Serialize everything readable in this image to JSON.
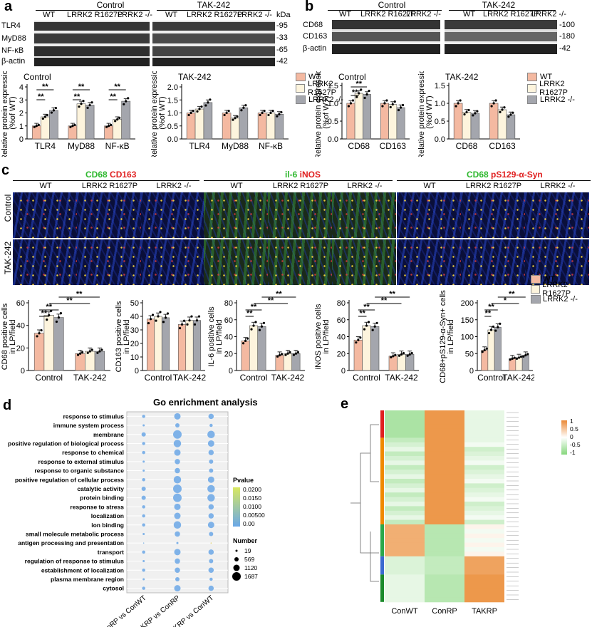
{
  "panel_a": {
    "label": "a",
    "group_control": "Control",
    "group_tak": "TAK-242",
    "lane_labels": [
      "WT",
      "LRRK2 R1627P",
      "LRRK2 -/-"
    ],
    "kda": "kDa",
    "rows": [
      {
        "protein": "TLR4",
        "kda": "-95"
      },
      {
        "protein": "MyD88",
        "kda": "-33"
      },
      {
        "protein": "NF-κB",
        "kda": "-65"
      },
      {
        "protein": "β-actin",
        "kda": "-42"
      }
    ]
  },
  "panel_b": {
    "label": "b",
    "group_control": "Control",
    "group_tak": "TAK-242",
    "lane_labels": [
      "WT",
      "LRRK2 R1627P",
      "LRRK2 -/-"
    ],
    "rows": [
      {
        "protein": "CD68",
        "kda": "-100"
      },
      {
        "protein": "CD163",
        "kda": "-180"
      },
      {
        "protein": "β-actin",
        "kda": "-42"
      }
    ]
  },
  "panel_c": {
    "label": "c",
    "stain_groups": [
      {
        "parts": [
          "CD68",
          " CD163"
        ],
        "colors": [
          "#2eb82e",
          "#e02020"
        ]
      },
      {
        "parts": [
          "il-6",
          " iNOS"
        ],
        "colors": [
          "#2eb82e",
          "#e02020"
        ]
      },
      {
        "parts": [
          "CD68",
          " pS129-α-Syn"
        ],
        "colors": [
          "#2eb82e",
          "#e02020"
        ]
      }
    ],
    "col_labels": [
      "WT",
      "LRRK2 R1627P",
      "LRRK2 -/-"
    ],
    "row_labels": [
      "Control",
      "TAK-242"
    ]
  },
  "legend": {
    "items": [
      {
        "name": "WT",
        "color": "#f4b9a1"
      },
      {
        "name": "LRRK2 R1627P",
        "color": "#fdf4dd"
      },
      {
        "name": "LRRK2 -/-",
        "color": "#a4a6ad"
      }
    ]
  },
  "panel_d": {
    "label": "d",
    "title": "Go enrichment analysis",
    "pvalue_title": "Pvalue",
    "pvalue_ticks": [
      "0.0200",
      "0.0150",
      "0.0100",
      "0.00500",
      "0.00"
    ],
    "number_title": "Number",
    "number_ticks": [
      "19",
      "569",
      "1120",
      "1687"
    ]
  },
  "panel_e": {
    "label": "e",
    "columns": [
      "ConWT",
      "ConRP",
      "TAKRP"
    ],
    "scale_ticks": [
      "1",
      "0.5",
      "0",
      "-0.5",
      "-1"
    ]
  },
  "chart_data": [
    {
      "type": "bar",
      "panel": "a-control",
      "title": "Control",
      "ylabel": "Relative protein expression (%of WT)",
      "categories": [
        "TLR4",
        "MyD88",
        "NF-κB"
      ],
      "ylim": [
        0,
        4
      ],
      "yticks": [
        "0",
        "1",
        "2",
        "3",
        "4"
      ],
      "series": [
        {
          "name": "WT",
          "values": [
            1.0,
            1.0,
            1.0
          ]
        },
        {
          "name": "LRRK2 R1627P",
          "values": [
            1.7,
            2.7,
            1.5
          ]
        },
        {
          "name": "LRRK2 -/-",
          "values": [
            2.2,
            2.6,
            2.9
          ]
        }
      ],
      "significance": [
        "**",
        "**",
        "**",
        "**",
        "**",
        "**"
      ]
    },
    {
      "type": "bar",
      "panel": "a-tak",
      "title": "TAK-242",
      "ylabel": "Relative protein expression (%of WT)",
      "categories": [
        "TLR4",
        "MyD88",
        "NF-κB"
      ],
      "ylim": [
        0,
        2.0
      ],
      "yticks": [
        "0.0",
        "0.5",
        "1.0",
        "1.5",
        "2.0"
      ],
      "series": [
        {
          "name": "WT",
          "values": [
            1.0,
            1.0,
            1.0
          ]
        },
        {
          "name": "LRRK2 R1627P",
          "values": [
            1.15,
            0.8,
            1.0
          ]
        },
        {
          "name": "LRRK2 -/-",
          "values": [
            1.4,
            1.2,
            0.95
          ]
        }
      ]
    },
    {
      "type": "bar",
      "panel": "b-control",
      "title": "Control",
      "ylabel": "Relative protein expression (%of WT)",
      "categories": [
        "CD68",
        "CD163"
      ],
      "ylim": [
        0,
        1.5
      ],
      "yticks": [
        "0.0",
        "0.5",
        "1.0",
        "1.5"
      ],
      "series": [
        {
          "name": "WT",
          "values": [
            1.0,
            1.0
          ]
        },
        {
          "name": "LRRK2 R1627P",
          "values": [
            1.28,
            0.97
          ]
        },
        {
          "name": "LRRK2 -/-",
          "values": [
            1.25,
            0.88
          ]
        }
      ],
      "significance": [
        "**",
        "**"
      ]
    },
    {
      "type": "bar",
      "panel": "b-tak",
      "title": "TAK-242",
      "ylabel": "Relative protein expression (%of WT)",
      "categories": [
        "CD68",
        "CD163"
      ],
      "ylim": [
        0,
        1.5
      ],
      "yticks": [
        "0.0",
        "0.5",
        "1.0",
        "1.5"
      ],
      "series": [
        {
          "name": "WT",
          "values": [
            1.0,
            1.0
          ]
        },
        {
          "name": "LRRK2 R1627P",
          "values": [
            0.75,
            0.82
          ]
        },
        {
          "name": "LRRK2 -/-",
          "values": [
            0.72,
            0.68
          ]
        }
      ]
    },
    {
      "type": "bar",
      "panel": "c-cd68",
      "ylabel": "CD68 positive cells in LP/field",
      "categories": [
        "Control",
        "TAK-242"
      ],
      "ylim": [
        0,
        60
      ],
      "yticks": [
        "0",
        "20",
        "40",
        "60"
      ],
      "series": [
        {
          "name": "WT",
          "values": [
            33,
            15
          ]
        },
        {
          "name": "LRRK2 R1627P",
          "values": [
            49,
            17
          ]
        },
        {
          "name": "LRRK2 -/-",
          "values": [
            47,
            17
          ]
        }
      ],
      "significance": [
        "**",
        "**",
        "**",
        "**"
      ]
    },
    {
      "type": "bar",
      "panel": "c-cd163",
      "ylabel": "CD163 positive cells in LP/field",
      "categories": [
        "Control",
        "TAK-242"
      ],
      "ylim": [
        0,
        50
      ],
      "yticks": [
        "0",
        "10",
        "20",
        "30",
        "40",
        "50"
      ],
      "series": [
        {
          "name": "WT",
          "values": [
            38,
            34
          ]
        },
        {
          "name": "LRRK2 R1627P",
          "values": [
            40,
            37
          ]
        },
        {
          "name": "LRRK2 -/-",
          "values": [
            39,
            37
          ]
        }
      ]
    },
    {
      "type": "bar",
      "panel": "c-il6",
      "ylabel": "IL-6 positive cells in LP/field",
      "categories": [
        "Control",
        "TAK-242"
      ],
      "ylim": [
        0,
        80
      ],
      "yticks": [
        "0",
        "20",
        "40",
        "60",
        "80"
      ],
      "series": [
        {
          "name": "WT",
          "values": [
            35,
            18
          ]
        },
        {
          "name": "LRRK2 R1627P",
          "values": [
            53,
            20
          ]
        },
        {
          "name": "LRRK2 -/-",
          "values": [
            52,
            20
          ]
        }
      ],
      "significance": [
        "**",
        "**",
        "**",
        "**"
      ]
    },
    {
      "type": "bar",
      "panel": "c-inos",
      "ylabel": "iNOS positive cells in LP/field",
      "categories": [
        "Control",
        "TAK-242"
      ],
      "ylim": [
        0,
        80
      ],
      "yticks": [
        "0",
        "20",
        "40",
        "60",
        "80"
      ],
      "series": [
        {
          "name": "WT",
          "values": [
            36,
            17
          ]
        },
        {
          "name": "LRRK2 R1627P",
          "values": [
            53,
            19
          ]
        },
        {
          "name": "LRRK2 -/-",
          "values": [
            52,
            19
          ]
        }
      ],
      "significance": [
        "**",
        "**",
        "**",
        "**"
      ]
    },
    {
      "type": "bar",
      "panel": "c-syn",
      "ylabel": "CD68+pS129-α-Syn+ cells in LP/field",
      "categories": [
        "Control",
        "TAK-242"
      ],
      "ylim": [
        0,
        200
      ],
      "yticks": [
        "0",
        "50",
        "100",
        "150",
        "200"
      ],
      "series": [
        {
          "name": "WT",
          "values": [
            60,
            35
          ]
        },
        {
          "name": "LRRK2 R1627P",
          "values": [
            120,
            38
          ]
        },
        {
          "name": "LRRK2 -/-",
          "values": [
            128,
            45
          ]
        }
      ],
      "significance": [
        "**",
        "**",
        "*",
        "**"
      ]
    },
    {
      "type": "scatter",
      "panel": "d",
      "title": "Go enrichment analysis",
      "categories_x": [
        "ConRP vs ConWT",
        "TAKRP vs ConRP",
        "TAKRP vs ConWT"
      ],
      "terms": [
        "response to stimulus",
        "immune system process",
        "membrane",
        "positive regulation of biological process",
        "response to chemical",
        "response to external stimulus",
        "response to organic substance",
        "positive regulation of cellular process",
        "catalytic activity",
        "protein binding",
        "response to stress",
        "localization",
        "ion binding",
        "small molecule metabolic process",
        "antigen processing and presentation",
        "transport",
        "regulation of response to stimulus",
        "establishment of localization",
        "plasma membrane region",
        "cytosol"
      ],
      "sizes": [
        [
          3,
          6,
          5
        ],
        [
          2,
          4,
          3
        ],
        [
          4,
          8,
          7
        ],
        [
          3,
          7,
          6
        ],
        [
          3,
          6,
          5
        ],
        [
          2,
          5,
          4
        ],
        [
          2,
          5,
          4
        ],
        [
          3,
          7,
          6
        ],
        [
          4,
          8,
          7
        ],
        [
          4,
          8,
          7
        ],
        [
          3,
          6,
          5
        ],
        [
          3,
          6,
          5
        ],
        [
          3,
          7,
          6
        ],
        [
          2,
          5,
          4
        ],
        [
          1,
          2,
          1
        ],
        [
          3,
          6,
          5
        ],
        [
          2,
          5,
          4
        ],
        [
          3,
          5,
          5
        ],
        [
          2,
          4,
          3
        ],
        [
          3,
          6,
          5
        ]
      ]
    },
    {
      "type": "heatmap",
      "panel": "e",
      "columns": [
        "ConWT",
        "ConRP",
        "TAKRP"
      ],
      "scale": [
        -1,
        1
      ]
    }
  ]
}
